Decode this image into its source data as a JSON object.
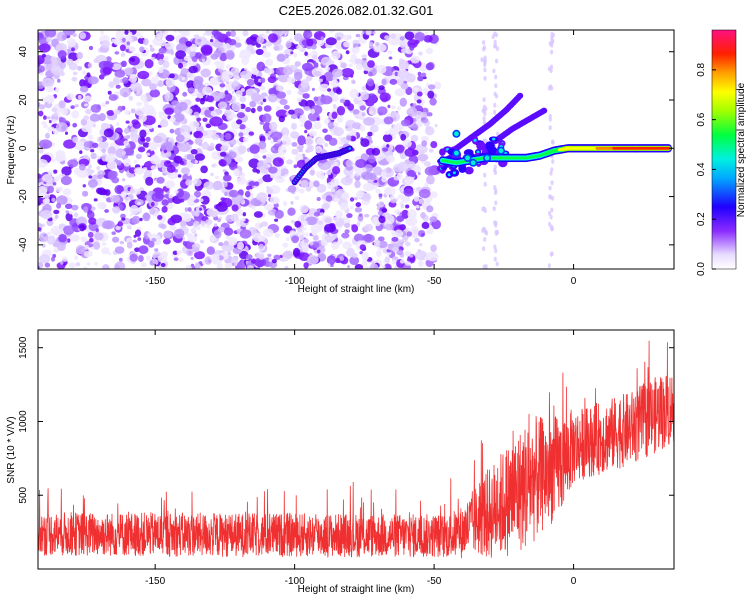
{
  "title": "C2E5.2026.082.01.32.G01",
  "chart_data": [
    {
      "type": "heatmap",
      "xlabel": "Height of straight line (km)",
      "ylabel": "Frequency (Hz)",
      "xlim": [
        -192,
        36
      ],
      "ylim": [
        -50,
        49
      ],
      "x_ticks": [
        -150,
        -100,
        -50,
        0
      ],
      "y_ticks": [
        -40,
        -20,
        0,
        20,
        40
      ],
      "colorbar": {
        "label": "Normalized spectral amplitude",
        "range": [
          0.0,
          0.96
        ],
        "ticks": [
          0.0,
          0.2,
          0.4,
          0.6,
          0.8
        ]
      },
      "tracks": [
        {
          "name": "weak_drift",
          "x": [
            -100,
            -96,
            -92,
            -88,
            -84,
            -80
          ],
          "y": [
            -14,
            -8,
            -4,
            -3,
            -2,
            0
          ]
        },
        {
          "name": "main_line",
          "x": [
            -47,
            -42,
            -37,
            -32,
            -27,
            -22,
            -17,
            -12,
            -7,
            -2,
            3,
            8,
            13,
            18,
            23,
            28,
            34
          ],
          "y": [
            -5,
            -6,
            -5,
            -4,
            -4,
            -4,
            -4,
            -3,
            -1,
            0,
            0,
            0,
            0,
            0,
            0,
            0,
            0
          ]
        },
        {
          "name": "upper_branch_1",
          "x": [
            -42,
            -36,
            -30,
            -24,
            -19
          ],
          "y": [
            0,
            5,
            10,
            16,
            22
          ]
        },
        {
          "name": "upper_branch_2",
          "x": [
            -28,
            -22,
            -16,
            -10
          ],
          "y": [
            3,
            8,
            12,
            16
          ]
        }
      ],
      "noise_region": {
        "x": [
          -192,
          -47
        ],
        "y": [
          -50,
          49
        ]
      },
      "colormap": [
        "#ffffff",
        "#6a00ff",
        "#0000ff",
        "#00e5ff",
        "#00ff00",
        "#ffff00",
        "#ff8000",
        "#ff0000",
        "#ff1493"
      ]
    },
    {
      "type": "line",
      "xlabel": "Height of straight line (km)",
      "ylabel": "SNR (10 * V/V)",
      "xlim": [
        -192,
        36
      ],
      "ylim": [
        0,
        1620
      ],
      "x_ticks": [
        -150,
        -100,
        -50,
        0
      ],
      "y_ticks": [
        500,
        1000,
        1500
      ],
      "color": "#f03030",
      "envelope": {
        "x": [
          -192,
          -170,
          -150,
          -120,
          -100,
          -80,
          -60,
          -45,
          -40,
          -35,
          -30,
          -25,
          -20,
          -15,
          -10,
          -5,
          0,
          5,
          10,
          15,
          20,
          25,
          30,
          36
        ],
        "center": [
          240,
          235,
          235,
          230,
          230,
          228,
          225,
          225,
          250,
          330,
          380,
          450,
          520,
          600,
          650,
          700,
          830,
          860,
          890,
          920,
          950,
          1000,
          1050,
          1100
        ],
        "spread": [
          150,
          150,
          150,
          150,
          150,
          150,
          150,
          150,
          180,
          240,
          320,
          370,
          420,
          440,
          380,
          350,
          260,
          240,
          250,
          250,
          250,
          260,
          260,
          260
        ]
      }
    }
  ]
}
